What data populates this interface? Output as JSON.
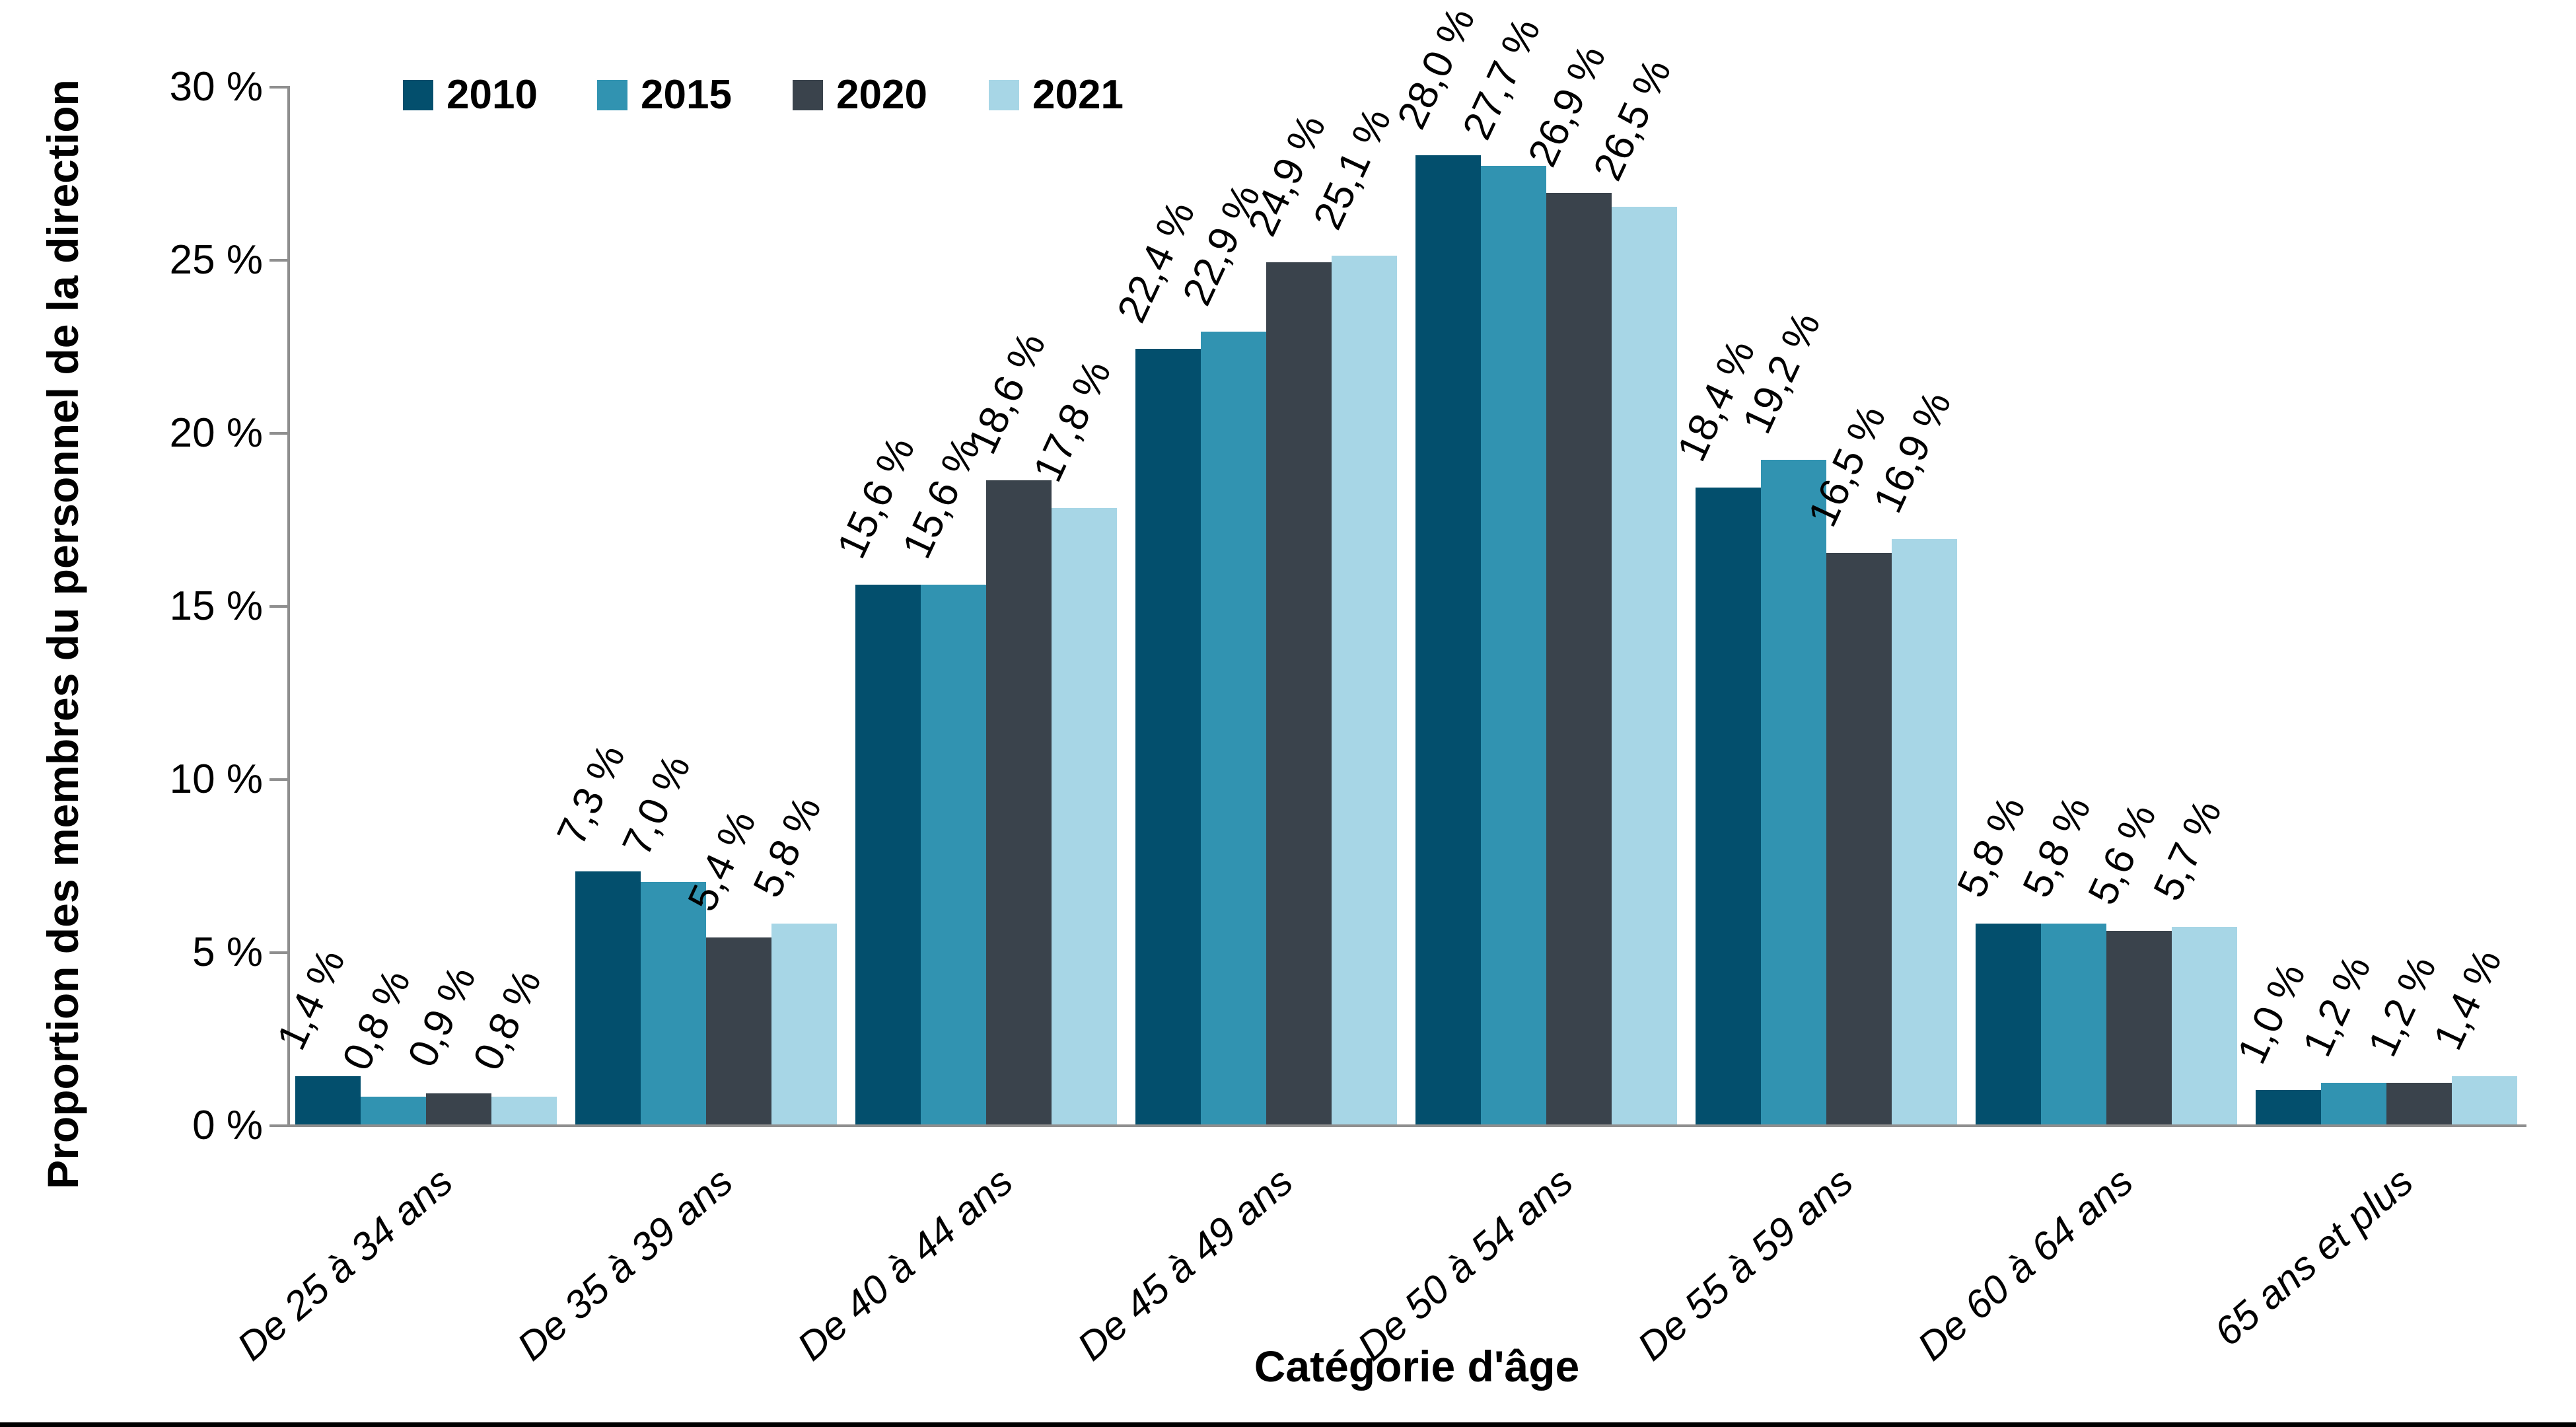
{
  "chart_data": {
    "type": "bar",
    "title": "",
    "xlabel": "Catégorie d'âge",
    "ylabel": "Proportion des membres du personnel de la direction",
    "ylim": [
      0,
      30
    ],
    "grid": false,
    "legend_position": "top-left",
    "categories": [
      "De 25 à 34 ans",
      "De 35 à 39 ans",
      "De 40 à 44 ans",
      "De 45 à 49 ans",
      "De 50 à 54 ans",
      "De 55 à 59 ans",
      "De 60 à 64 ans",
      "65 ans et plus"
    ],
    "ytick_values": [
      0,
      5,
      10,
      15,
      20,
      25,
      30
    ],
    "ytick_labels": [
      "0 %",
      "5 %",
      "10 %",
      "15 %",
      "20 %",
      "25 %",
      "30 %"
    ],
    "series": [
      {
        "name": "2010",
        "color": "#034F6D",
        "values": [
          1.4,
          7.3,
          15.6,
          22.4,
          28.0,
          18.4,
          5.8,
          1.0
        ],
        "value_labels": [
          "1,4 %",
          "7,3 %",
          "15,6 %",
          "22,4 %",
          "28,0 %",
          "18,4 %",
          "5,8 %",
          "1,0 %"
        ]
      },
      {
        "name": "2015",
        "color": "#3193B1",
        "values": [
          0.8,
          7.0,
          15.6,
          22.9,
          27.7,
          19.2,
          5.8,
          1.2
        ],
        "value_labels": [
          "0,8 %",
          "7,0 %",
          "15,6 %",
          "22,9 %",
          "27,7 %",
          "19,2 %",
          "5,8 %",
          "1,2 %"
        ]
      },
      {
        "name": "2020",
        "color": "#3A434C",
        "values": [
          0.9,
          5.4,
          18.6,
          24.9,
          26.9,
          16.5,
          5.6,
          1.2
        ],
        "value_labels": [
          "0,9 %",
          "5,4 %",
          "18,6 %",
          "24,9 %",
          "26,9 %",
          "16,5 %",
          "5,6 %",
          "1,2 %"
        ]
      },
      {
        "name": "2021",
        "color": "#A7D6E6",
        "values": [
          0.8,
          5.8,
          17.8,
          25.1,
          26.5,
          16.9,
          5.7,
          1.4
        ],
        "value_labels": [
          "0,8 %",
          "5,8 %",
          "17,8 %",
          "25,1 %",
          "26,5 %",
          "16,9 %",
          "5,7 %",
          "1,4 %"
        ]
      }
    ],
    "axis_color": "#8f8f8f",
    "bottom_rule_color": "#000000"
  }
}
